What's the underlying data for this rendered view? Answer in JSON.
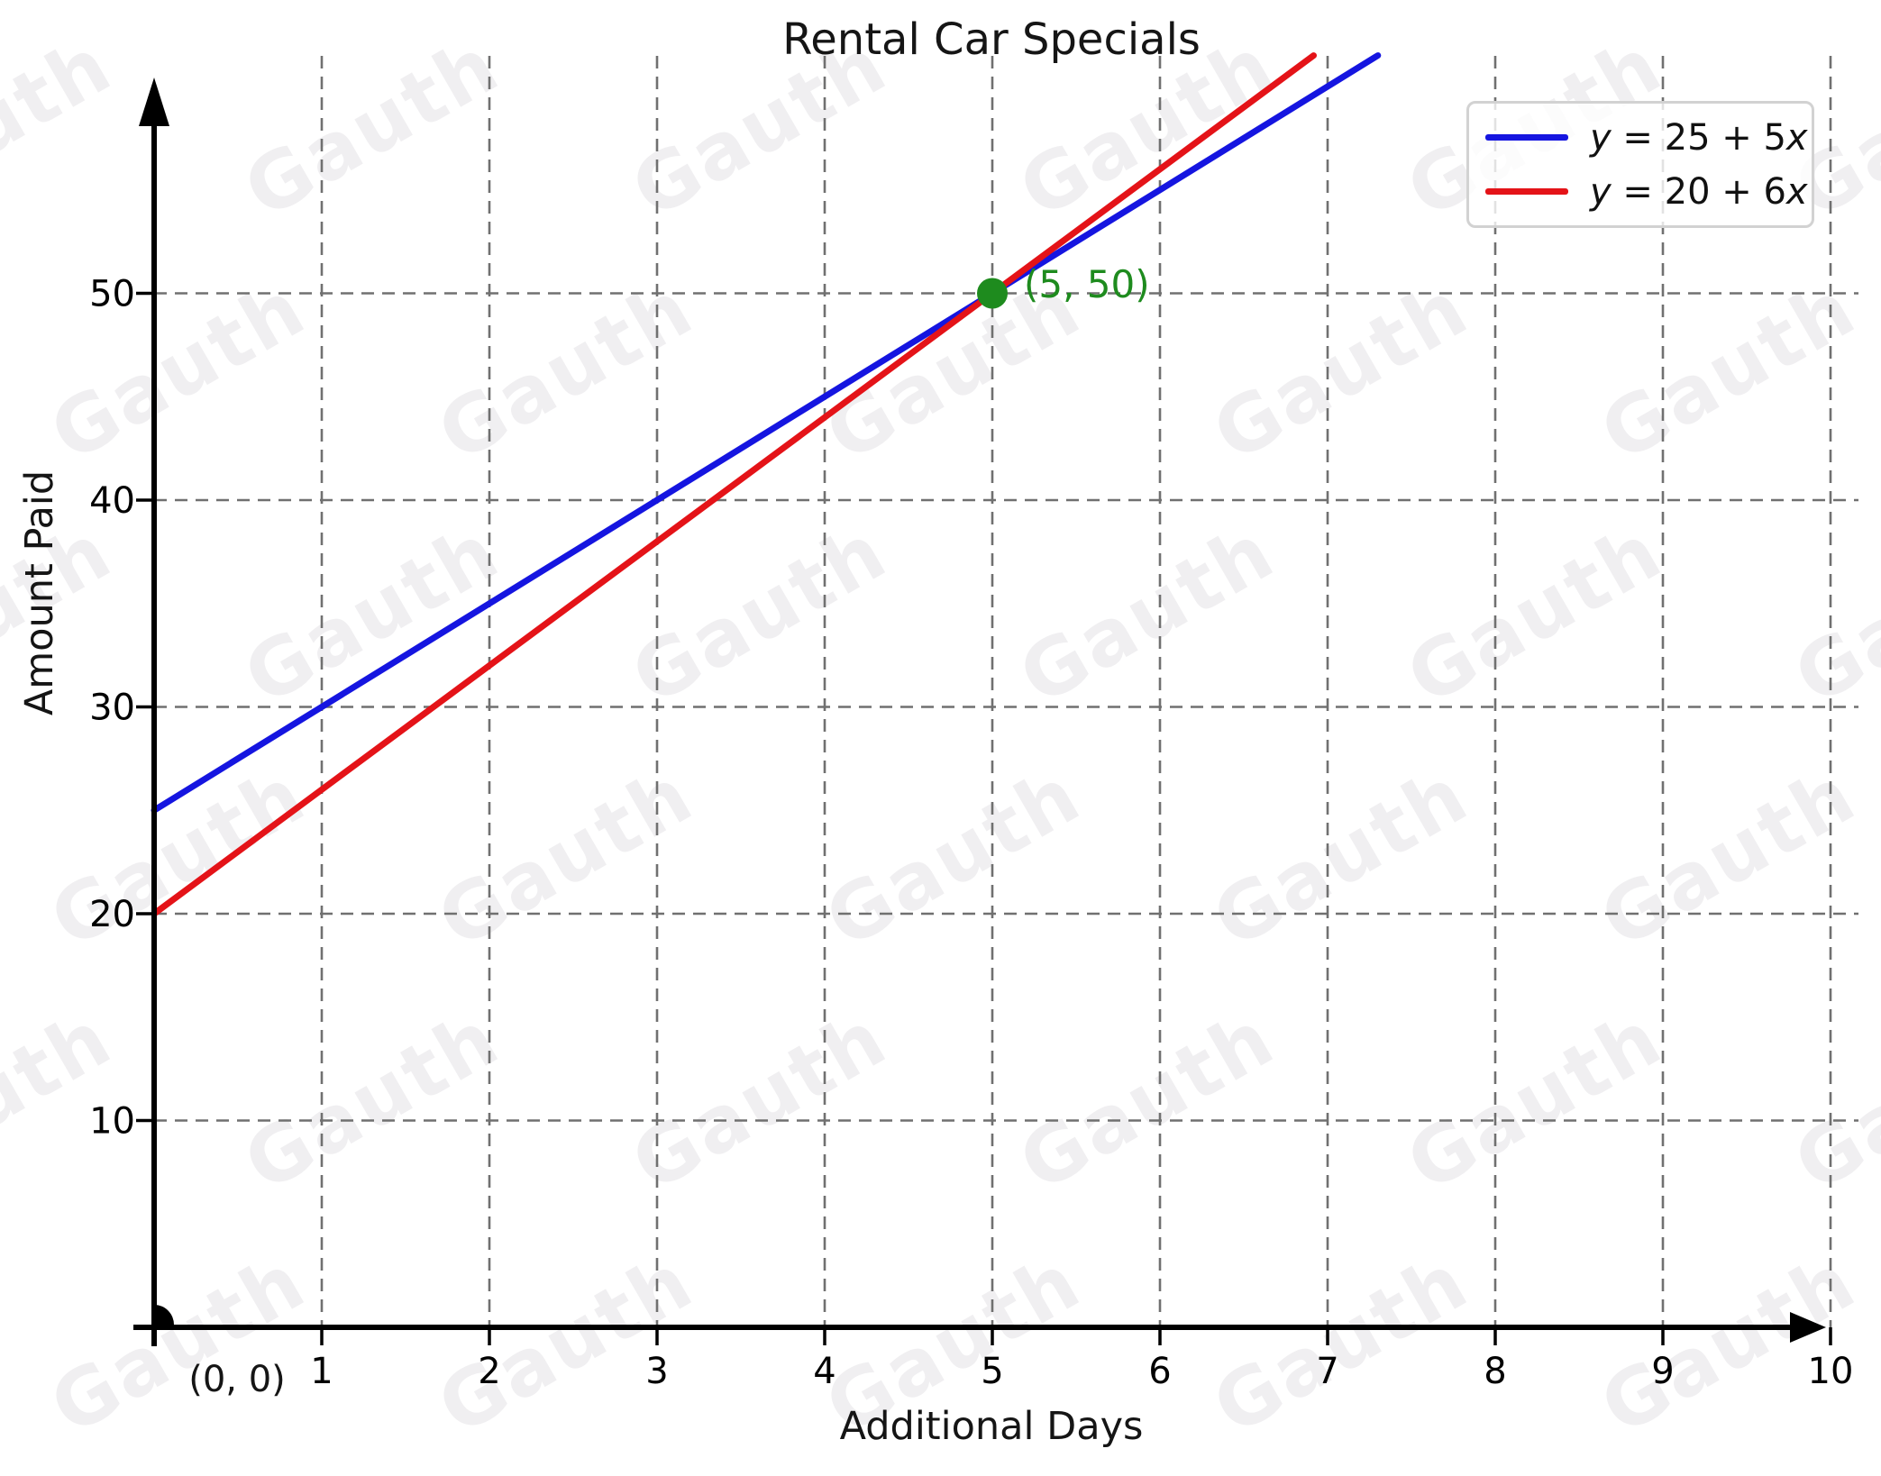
{
  "page": {
    "background": "#ffffff"
  },
  "watermark": {
    "text": "Gauth",
    "color": "#f0eff1"
  },
  "chart_data": {
    "type": "line",
    "title": "Rental Car Specials",
    "xlabel": "Additional Days",
    "ylabel": "Amount Paid",
    "x_ticks": [
      1,
      2,
      3,
      4,
      5,
      6,
      7,
      8,
      9,
      10
    ],
    "y_ticks": [
      10,
      20,
      30,
      40,
      50
    ],
    "xlim": [
      0,
      10.3
    ],
    "ylim": [
      0,
      61.5
    ],
    "grid": true,
    "grid_style": "dashed",
    "grid_color": "#707070",
    "axis_color": "#000000",
    "legend_position": "upper right",
    "origin_label": "(0, 0)",
    "series": [
      {
        "name": "y = 25 + 5x",
        "slope": 5,
        "intercept": 25,
        "color": "#1515e0",
        "points": [
          {
            "x": 0,
            "y": 25
          },
          {
            "x": 1,
            "y": 30
          },
          {
            "x": 5,
            "y": 50
          },
          {
            "x": 7,
            "y": 60
          }
        ]
      },
      {
        "name": "y = 20 + 6x",
        "slope": 6,
        "intercept": 20,
        "color": "#e41318",
        "points": [
          {
            "x": 0,
            "y": 20
          },
          {
            "x": 1,
            "y": 26
          },
          {
            "x": 5,
            "y": 50
          },
          {
            "x": 6.9,
            "y": 61.4
          }
        ]
      }
    ],
    "intersection": {
      "x": 5,
      "y": 50,
      "label": "(5, 50)",
      "color": "#1e8b1e"
    }
  }
}
